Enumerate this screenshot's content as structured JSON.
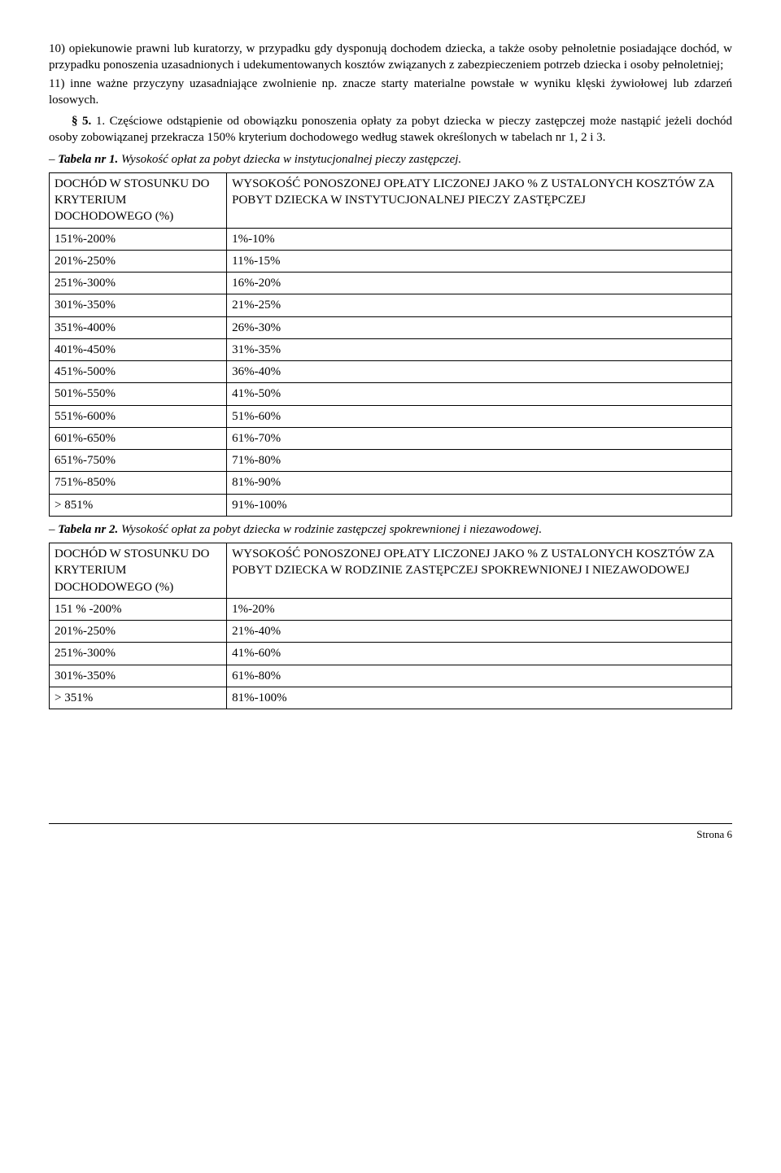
{
  "para10": "10) opiekunowie prawni lub kuratorzy, w przypadku gdy dysponują dochodem dziecka, a także osoby pełnoletnie posiadające dochód, w przypadku ponoszenia uzasadnionych i udekumentowanych kosztów związanych z zabezpieczeniem potrzeb dziecka i osoby pełnoletniej;",
  "para11": "11) inne ważne przyczyny uzasadniające zwolnienie np. znacze starty materialne powstałe w wyniku klęski żywiołowej lub zdarzeń losowych.",
  "sec5_label": "§ 5.",
  "sec5_text": " 1. Częściowe odstąpienie od obowiązku ponoszenia opłaty za pobyt dziecka w pieczy zastępczej może nastąpić jeżeli dochód osoby zobowiązanej przekracza 150% kryterium dochodowego według stawek określonych w tabelach nr 1, 2 i 3.",
  "t1_title_dash": "– ",
  "t1_title_bi": "Tabela nr 1.",
  "t1_title_rest": " Wysokość opłat za pobyt dziecka w instytucjonalnej pieczy zastępczej.",
  "t1_h1": "DOCHÓD W STOSUNKU DO KRYTERIUM DOCHODOWEGO (%)",
  "t1_h2": "WYSOKOŚĆ PONOSZONEJ OPŁATY LICZONEJ JAKO % Z USTALONYCH KOSZTÓW ZA POBYT DZIECKA W INSTYTUCJONALNEJ PIECZY ZASTĘPCZEJ",
  "t1_rows": [
    [
      "151%-200%",
      "1%-10%"
    ],
    [
      "201%-250%",
      "11%-15%"
    ],
    [
      "251%-300%",
      "16%-20%"
    ],
    [
      "301%-350%",
      "21%-25%"
    ],
    [
      "351%-400%",
      "26%-30%"
    ],
    [
      "401%-450%",
      "31%-35%"
    ],
    [
      "451%-500%",
      "36%-40%"
    ],
    [
      "501%-550%",
      "41%-50%"
    ],
    [
      "551%-600%",
      "51%-60%"
    ],
    [
      "601%-650%",
      "61%-70%"
    ],
    [
      "651%-750%",
      "71%-80%"
    ],
    [
      "751%-850%",
      "81%-90%"
    ],
    [
      "> 851%",
      "91%-100%"
    ]
  ],
  "t2_title_dash": "– ",
  "t2_title_bi": "Tabela nr 2.",
  "t2_title_rest": " Wysokość opłat za pobyt dziecka w rodzinie zastępczej spokrewnionej i niezawodowej.",
  "t2_h1": "DOCHÓD W STOSUNKU DO KRYTERIUM DOCHODOWEGO (%)",
  "t2_h2": "WYSOKOŚĆ PONOSZONEJ OPŁATY LICZONEJ JAKO % Z USTALONYCH KOSZTÓW ZA POBYT DZIECKA W RODZINIE ZASTĘPCZEJ SPOKREWNIONEJ I NIEZAWODOWEJ",
  "t2_rows": [
    [
      "151 % -200%",
      "1%-20%"
    ],
    [
      "201%-250%",
      "21%-40%"
    ],
    [
      "251%-300%",
      "41%-60%"
    ],
    [
      "301%-350%",
      "61%-80%"
    ],
    [
      "> 351%",
      "81%-100%"
    ]
  ],
  "footer": "Strona 6"
}
